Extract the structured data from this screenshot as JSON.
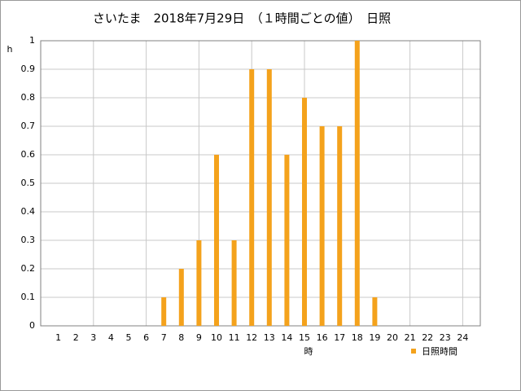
{
  "chart_data": {
    "type": "bar",
    "title": "さいたま　2018年7月29日　（１時間ごとの値）　日照",
    "x_label": "時",
    "y_label": "h",
    "categories": [
      "1",
      "2",
      "3",
      "4",
      "5",
      "6",
      "7",
      "8",
      "9",
      "10",
      "11",
      "12",
      "13",
      "14",
      "15",
      "16",
      "17",
      "18",
      "19",
      "20",
      "21",
      "22",
      "23",
      "24"
    ],
    "series": [
      {
        "name": "日照時間",
        "color": "#f4a21c",
        "values": [
          0,
          0,
          0,
          0,
          0,
          0,
          0.1,
          0.2,
          0.3,
          0.6,
          0.3,
          0.9,
          0.9,
          0.6,
          0.8,
          0.7,
          0.7,
          1,
          0.1,
          0,
          0,
          0,
          0,
          0
        ]
      }
    ],
    "ylim": [
      0,
      1
    ],
    "yticks": [
      0,
      0.1,
      0.2,
      0.3,
      0.4,
      0.5,
      0.6,
      0.7,
      0.8,
      0.9,
      1
    ],
    "grid": true,
    "legend": "bottom-right"
  }
}
